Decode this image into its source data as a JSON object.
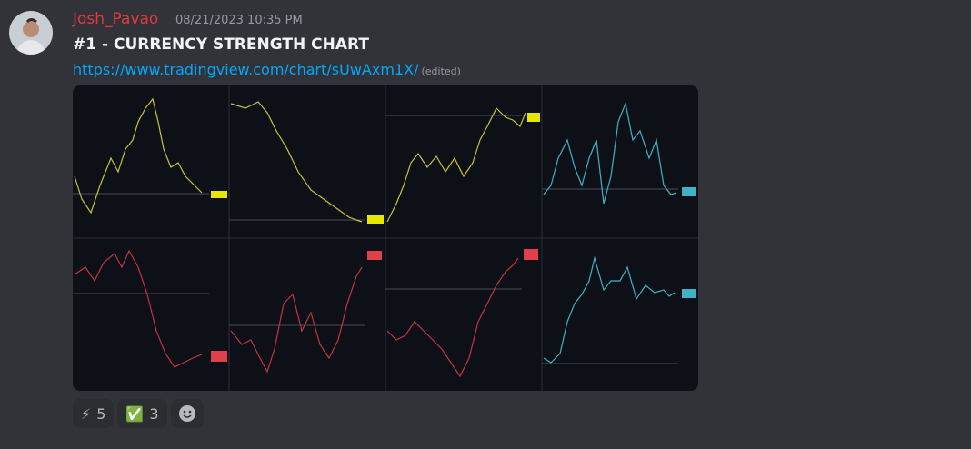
{
  "message": {
    "author": "Josh_Pavao",
    "timestamp": "08/21/2023 10:35 PM",
    "title": "#1 - CURRENCY STRENGTH CHART",
    "link": "https://www.tradingview.com/chart/sUwAxm1X/",
    "edited": "(edited)"
  },
  "reactions": [
    {
      "emoji": "⚡",
      "count": 5
    },
    {
      "emoji": "✅",
      "count": 3
    }
  ]
}
